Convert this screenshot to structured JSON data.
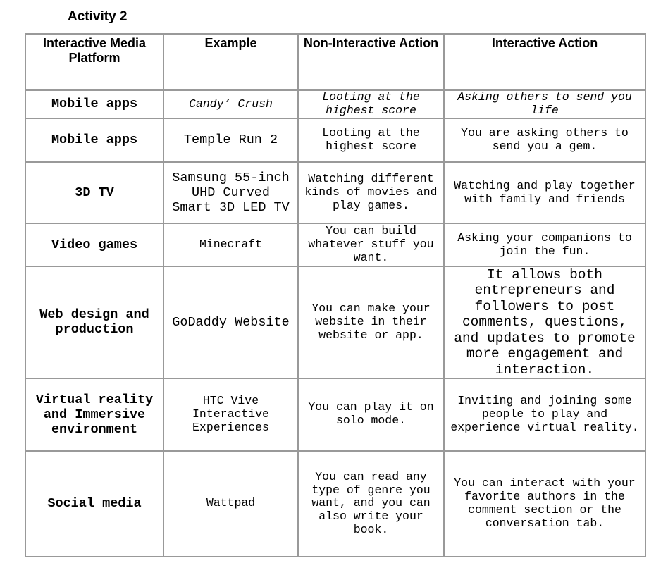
{
  "header": {
    "title": "Activity 2"
  },
  "table": {
    "columns": [
      "Interactive Media Platform",
      "Example",
      "Non-Interactive Action",
      "Interactive Action"
    ],
    "rows": [
      [
        "Mobile apps",
        "Candy’ Crush",
        "Looting at the highest score",
        "Asking others to send you life"
      ],
      [
        "Mobile apps",
        "Temple Run 2",
        "Looting at the highest score",
        "You are asking others to send you a gem."
      ],
      [
        "3D TV",
        "Samsung 55-inch UHD Curved Smart 3D LED TV",
        "Watching different kinds of movies and play games.",
        "Watching and play together with family and friends"
      ],
      [
        "Video games",
        "Minecraft",
        "You can build whatever stuff you want.",
        "Asking your companions to join the fun."
      ],
      [
        "Web design and production",
        "GoDaddy Website",
        "You can make your website in their website or app.",
        "It allows both entrepreneurs and followers to post comments, questions, and updates to promote more engagement and interaction."
      ],
      [
        "Virtual reality and Immersive environment",
        "HTC Vive Interactive Experiences",
        "You can play it on solo mode.",
        "Inviting and joining some people to play and experience virtual reality."
      ],
      [
        "Social media",
        "Wattpad",
        "You can read any type of genre you want, and you can also write your book.",
        "You can interact with your favorite authors in the comment section or the conversation tab."
      ]
    ]
  }
}
